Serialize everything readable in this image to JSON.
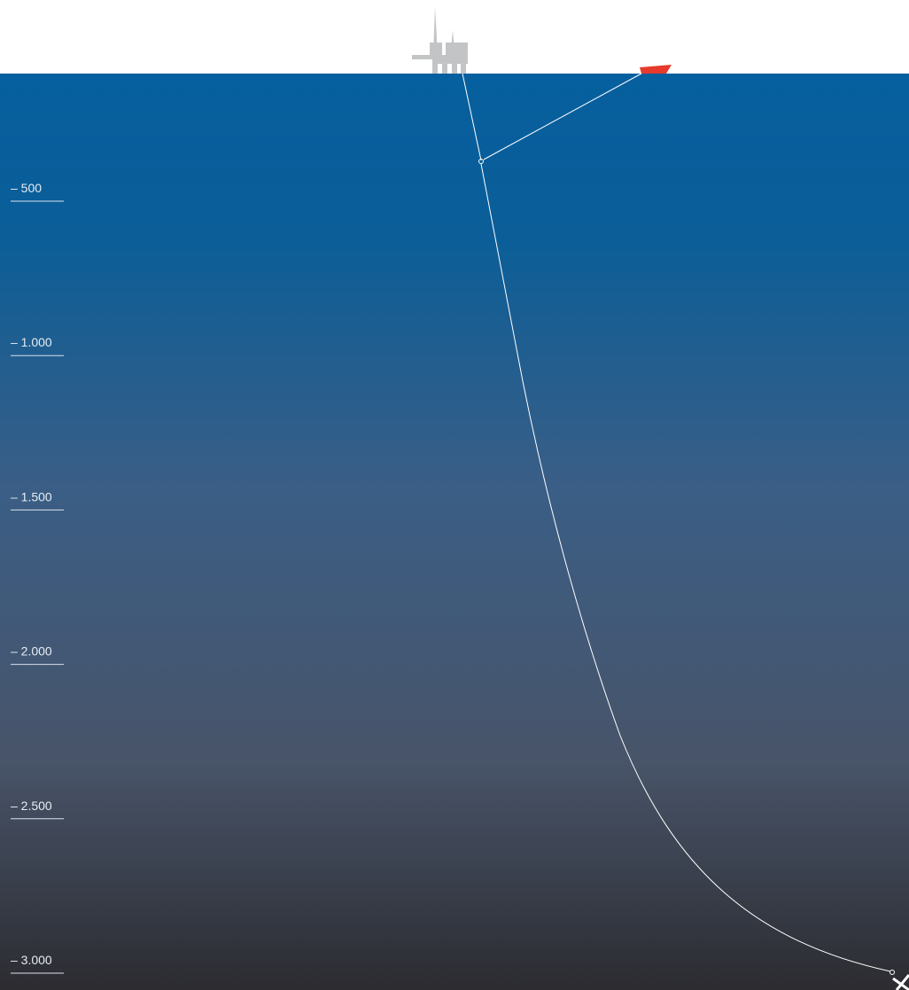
{
  "depth_scale": {
    "labels": [
      "– 500",
      "– 1.000",
      "– 1.500",
      "– 2.000",
      "– 2.500",
      "– 3.000"
    ]
  }
}
